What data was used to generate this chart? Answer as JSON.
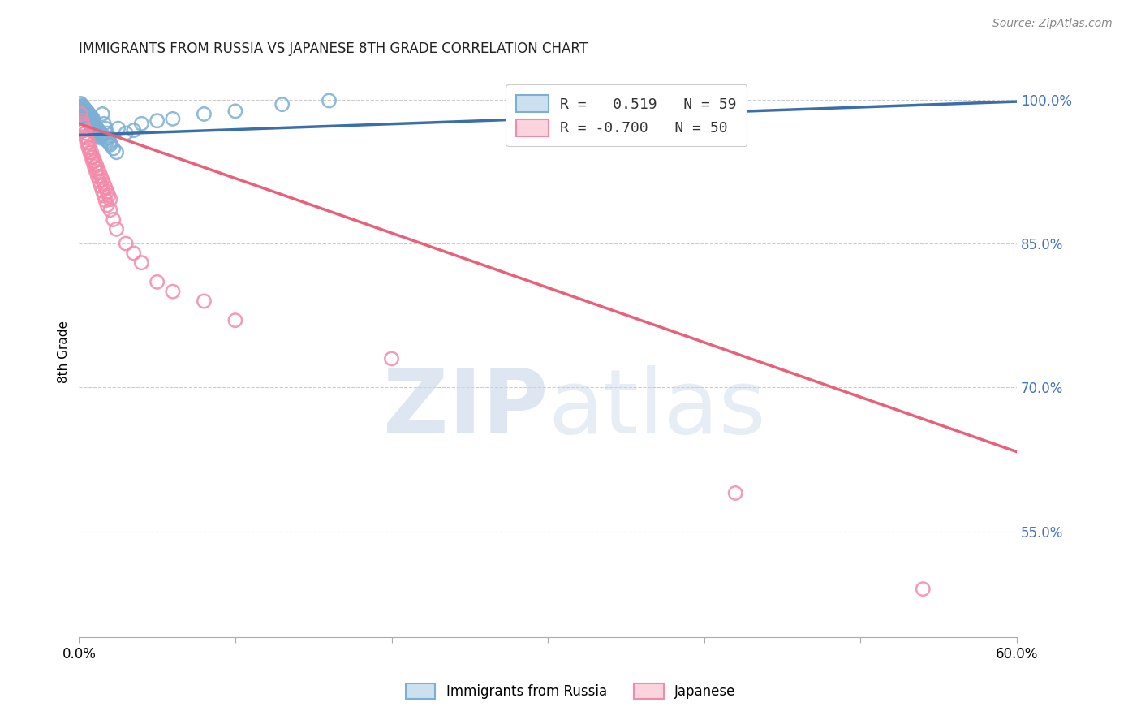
{
  "title": "IMMIGRANTS FROM RUSSIA VS JAPANESE 8TH GRADE CORRELATION CHART",
  "source": "Source: ZipAtlas.com",
  "ylabel": "8th Grade",
  "right_ytick_labels": [
    "100.0%",
    "85.0%",
    "70.0%",
    "55.0%"
  ],
  "right_ytick_values": [
    1.0,
    0.85,
    0.7,
    0.55
  ],
  "legend_blue_label": "Immigrants from Russia",
  "legend_pink_label": "Japanese",
  "R_blue": 0.519,
  "N_blue": 59,
  "R_pink": -0.7,
  "N_pink": 50,
  "blue_color": "#7bafd4",
  "pink_color": "#f48aaa",
  "blue_line_color": "#3a6faa",
  "pink_line_color": "#e8607a",
  "watermark_zip": "ZIP",
  "watermark_atlas": "atlas",
  "background_color": "#ffffff",
  "grid_color": "#cccccc",
  "xlim": [
    0.0,
    0.6
  ],
  "ylim": [
    0.44,
    1.035
  ],
  "blue_scatter_x": [
    0.001,
    0.002,
    0.003,
    0.004,
    0.005,
    0.006,
    0.007,
    0.008,
    0.009,
    0.01,
    0.011,
    0.012,
    0.013,
    0.014,
    0.015,
    0.016,
    0.017,
    0.018,
    0.019,
    0.02,
    0.002,
    0.003,
    0.004,
    0.005,
    0.006,
    0.007,
    0.008,
    0.009,
    0.01,
    0.011,
    0.012,
    0.013,
    0.014,
    0.015,
    0.016,
    0.017,
    0.018,
    0.02,
    0.022,
    0.024,
    0.001,
    0.002,
    0.003,
    0.004,
    0.005,
    0.006,
    0.007,
    0.008,
    0.009,
    0.025,
    0.03,
    0.035,
    0.04,
    0.05,
    0.06,
    0.08,
    0.1,
    0.13,
    0.16
  ],
  "blue_scatter_y": [
    0.99,
    0.988,
    0.985,
    0.983,
    0.98,
    0.978,
    0.975,
    0.972,
    0.97,
    0.968,
    0.966,
    0.964,
    0.962,
    0.96,
    0.985,
    0.975,
    0.97,
    0.965,
    0.96,
    0.955,
    0.993,
    0.991,
    0.989,
    0.987,
    0.984,
    0.982,
    0.979,
    0.976,
    0.974,
    0.971,
    0.969,
    0.967,
    0.965,
    0.963,
    0.961,
    0.959,
    0.957,
    0.953,
    0.949,
    0.945,
    0.996,
    0.994,
    0.992,
    0.99,
    0.988,
    0.986,
    0.984,
    0.982,
    0.98,
    0.97,
    0.965,
    0.968,
    0.975,
    0.978,
    0.98,
    0.985,
    0.988,
    0.995,
    0.999
  ],
  "pink_scatter_x": [
    0.001,
    0.002,
    0.003,
    0.004,
    0.005,
    0.006,
    0.007,
    0.008,
    0.009,
    0.01,
    0.011,
    0.012,
    0.013,
    0.014,
    0.015,
    0.016,
    0.017,
    0.018,
    0.019,
    0.02,
    0.002,
    0.003,
    0.004,
    0.005,
    0.006,
    0.007,
    0.008,
    0.009,
    0.01,
    0.011,
    0.012,
    0.013,
    0.014,
    0.015,
    0.016,
    0.017,
    0.018,
    0.02,
    0.022,
    0.024,
    0.03,
    0.035,
    0.04,
    0.05,
    0.06,
    0.08,
    0.1,
    0.2,
    0.42,
    0.54
  ],
  "pink_scatter_y": [
    0.985,
    0.978,
    0.972,
    0.965,
    0.96,
    0.955,
    0.95,
    0.945,
    0.94,
    0.936,
    0.932,
    0.928,
    0.924,
    0.92,
    0.916,
    0.912,
    0.908,
    0.904,
    0.9,
    0.896,
    0.975,
    0.968,
    0.961,
    0.955,
    0.95,
    0.945,
    0.94,
    0.935,
    0.93,
    0.925,
    0.92,
    0.915,
    0.91,
    0.905,
    0.9,
    0.895,
    0.89,
    0.885,
    0.875,
    0.865,
    0.85,
    0.84,
    0.83,
    0.81,
    0.8,
    0.79,
    0.77,
    0.73,
    0.59,
    0.49
  ],
  "blue_trendline_x": [
    0.0,
    0.6
  ],
  "blue_trendline_y": [
    0.963,
    0.998
  ],
  "pink_trendline_x": [
    0.0,
    0.6
  ],
  "pink_trendline_y": [
    0.975,
    0.633
  ]
}
